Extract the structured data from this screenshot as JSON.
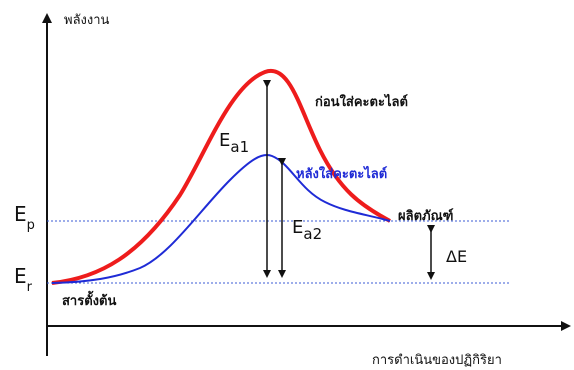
{
  "diagram": {
    "y_axis_label": "พลังงาน",
    "x_axis_label": "การดำเนินของปฏิกิริยา",
    "ep_main": "E",
    "ep_sub": "p",
    "er_main": "E",
    "er_sub": "r",
    "reactant_label": "สารตั้งต้น",
    "product_label": "ผลิตภัณฑ์",
    "uncatalyzed_label": "ก่อนใส่คะตะไลต์",
    "catalyzed_label": "หลังใส่คะตะไลต์",
    "ea1_main": "E",
    "ea1_sub": "a1",
    "ea2_main": "E",
    "ea2_sub": "a2",
    "delta_e_label": "ΔE",
    "colors": {
      "uncatalyzed_curve": "#ee1c1c",
      "catalyzed_curve": "#1f2bd6",
      "guide_lines": "#3b5bd6",
      "axes": "#111111"
    }
  }
}
